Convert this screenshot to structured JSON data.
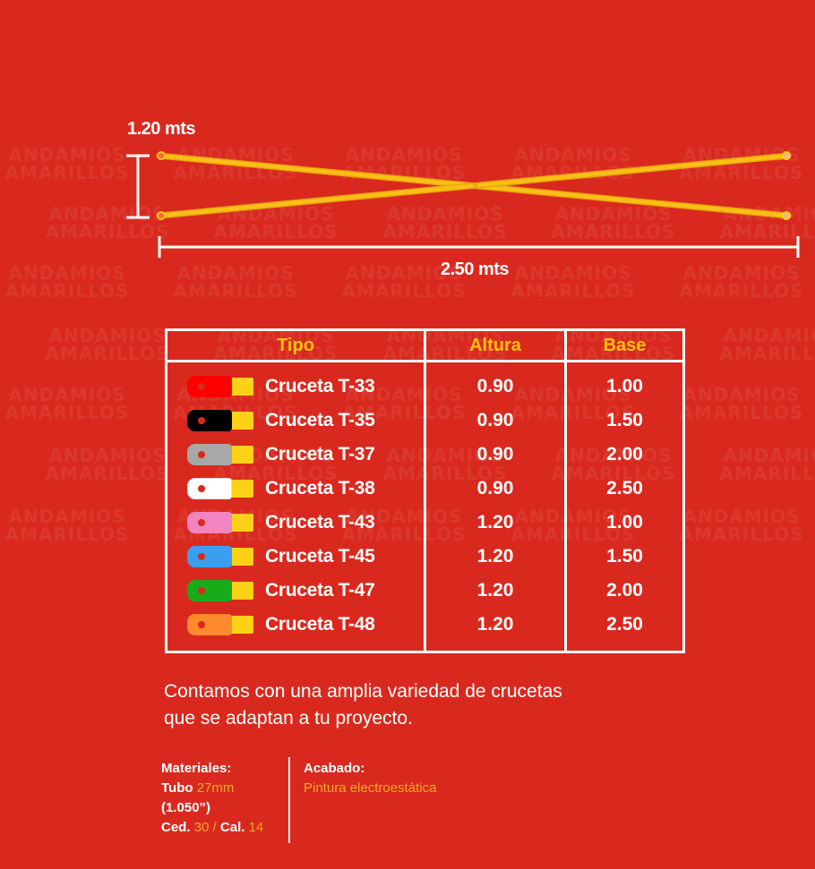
{
  "watermark": {
    "line1": "ANDAMIOS",
    "line2": "AMARILLOS"
  },
  "diagram": {
    "height_label": "1.20 mts",
    "width_label": "2.50 mts",
    "bar_color": "#fcbf16",
    "dimension_color": "#ffffff"
  },
  "table": {
    "headers": [
      "Tipo",
      "Altura",
      "Base"
    ],
    "header_color": "#ffc20e",
    "rows": [
      {
        "tipo": "Cruceta T-33",
        "altura": "0.90",
        "base": "1.00",
        "color": "#ff0000"
      },
      {
        "tipo": "Cruceta T-35",
        "altura": "0.90",
        "base": "1.50",
        "color": "#000000"
      },
      {
        "tipo": "Cruceta T-37",
        "altura": "0.90",
        "base": "2.00",
        "color": "#a8a8a8"
      },
      {
        "tipo": "Cruceta T-38",
        "altura": "0.90",
        "base": "2.50",
        "color": "#ffffff"
      },
      {
        "tipo": "Cruceta T-43",
        "altura": "1.20",
        "base": "1.00",
        "color": "#f285c1"
      },
      {
        "tipo": "Cruceta T-45",
        "altura": "1.20",
        "base": "1.50",
        "color": "#3a9ff0"
      },
      {
        "tipo": "Cruceta T-47",
        "altura": "1.20",
        "base": "2.00",
        "color": "#1aab1a"
      },
      {
        "tipo": "Cruceta T-48",
        "altura": "1.20",
        "base": "2.50",
        "color": "#ff8a2b"
      }
    ]
  },
  "description": {
    "line1": "Contamos con una amplia variedad de crucetas",
    "line2": "que se adaptan a tu proyecto."
  },
  "materials": {
    "title": "Materiales:",
    "tubo_label": "Tubo",
    "tubo_value": "27mm",
    "tubo_inch": "(1.050”)",
    "ced_label": "Ced.",
    "ced_value": "30",
    "separator": "/",
    "cal_label": "Cal.",
    "cal_value": "14"
  },
  "finish": {
    "title": "Acabado:",
    "value": "Pintura electroestática"
  }
}
